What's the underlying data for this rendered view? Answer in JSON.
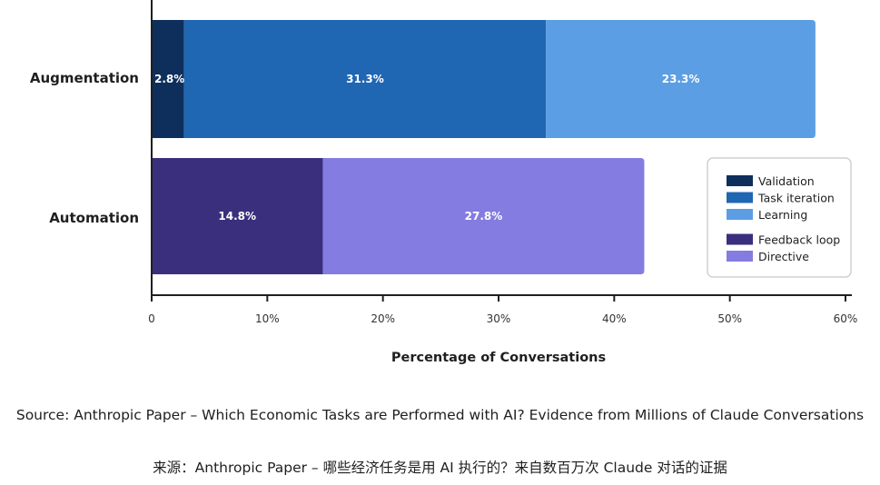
{
  "chart_data": {
    "type": "bar",
    "orientation": "horizontal",
    "stacked": true,
    "xlabel": "Percentage of Conversations",
    "xlim": [
      0,
      60
    ],
    "xticks": [
      "0",
      "10%",
      "20%",
      "30%",
      "40%",
      "50%",
      "60%"
    ],
    "xtick_values": [
      0,
      10,
      20,
      30,
      40,
      50,
      60
    ],
    "categories": [
      "Augmentation",
      "Automation"
    ],
    "series": [
      {
        "name": "Validation",
        "category": "Augmentation",
        "value": 2.8,
        "label": "2.8%",
        "color": "#0e2f5c"
      },
      {
        "name": "Task iteration",
        "category": "Augmentation",
        "value": 31.3,
        "label": "31.3%",
        "color": "#1f66b3"
      },
      {
        "name": "Learning",
        "category": "Augmentation",
        "value": 23.3,
        "label": "23.3%",
        "color": "#5b9ee3"
      },
      {
        "name": "Feedback loop",
        "category": "Automation",
        "value": 14.8,
        "label": "14.8%",
        "color": "#3a2f7c"
      },
      {
        "name": "Directive",
        "category": "Automation",
        "value": 27.8,
        "label": "27.8%",
        "color": "#847ce0"
      }
    ],
    "legend": {
      "placement": "right",
      "groups": [
        [
          "Validation",
          "Task iteration",
          "Learning"
        ],
        [
          "Feedback loop",
          "Directive"
        ]
      ]
    },
    "grid": false
  },
  "captions": {
    "source_en": "Source: Anthropic Paper – Which Economic Tasks are Performed with AI? Evidence from Millions of Claude Conversations",
    "source_zh": "来源：Anthropic Paper – 哪些经济任务是用 AI 执行的？来自数百万次 Claude 对话的证据"
  }
}
